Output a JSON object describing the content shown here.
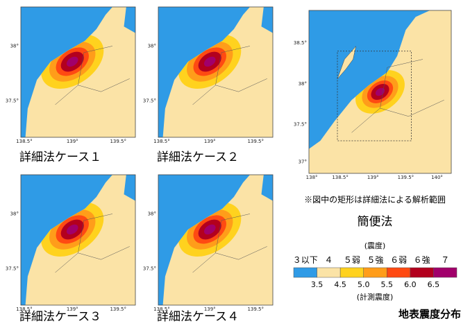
{
  "detailed_maps": [
    {
      "caption": "詳細法ケース１",
      "y_ticks": [
        "38°",
        "37.5°"
      ],
      "x_ticks": [
        "138.5°",
        "139°",
        "139.5°"
      ]
    },
    {
      "caption": "詳細法ケース２",
      "y_ticks": [
        "38°",
        "37.5°"
      ],
      "x_ticks": [
        "138.5°",
        "139°",
        "139.5°"
      ]
    },
    {
      "caption": "詳細法ケース３",
      "y_ticks": [
        "38°",
        "37.5°"
      ],
      "x_ticks": [
        "138.5°",
        "139°",
        "139.5°"
      ]
    },
    {
      "caption": "詳細法ケース４",
      "y_ticks": [
        "38°",
        "37.5°"
      ],
      "x_ticks": [
        "138.5°",
        "139°",
        "139.5°"
      ]
    }
  ],
  "simple_map": {
    "title": "簡便法",
    "note": "※図中の矩形は詳細法による解析範囲",
    "y_ticks": [
      "38.5°",
      "38°",
      "37.5°",
      "37°"
    ],
    "x_ticks": [
      "138°",
      "138.5°",
      "139°",
      "139.5°",
      "140°"
    ]
  },
  "legend": {
    "title": "(震度)",
    "intensities": [
      "３以下",
      "４",
      "５弱",
      "５強",
      "６弱",
      "６強",
      "７"
    ],
    "colors": [
      "#2f9be6",
      "#fbe3a6",
      "#ffd21e",
      "#ff9d1a",
      "#ff4a12",
      "#b3001e",
      "#a1006b"
    ],
    "measured_values": [
      "3.5",
      "4.5",
      "5.0",
      "5.5",
      "6.0",
      "6.5"
    ],
    "measured_title": "(計測震度)"
  },
  "figure_title": "地表震度分布"
}
